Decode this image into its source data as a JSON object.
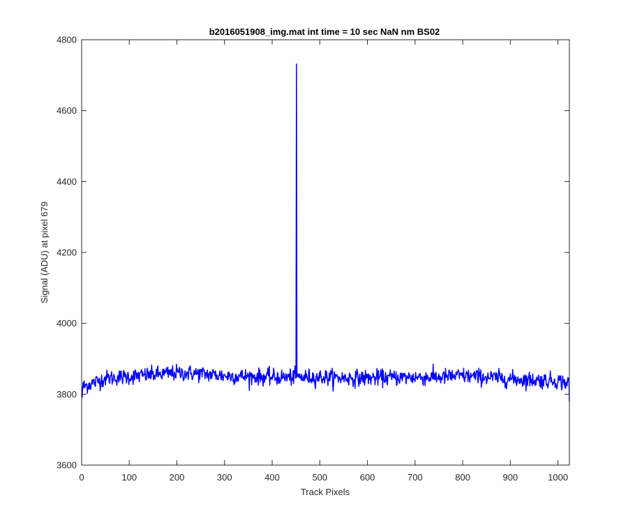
{
  "chart_data": {
    "type": "line",
    "title": "b2016051908_img.mat int time = 10 sec  NaN nm BS02",
    "xlabel": "Track Pixels",
    "ylabel": "Signal (ADU) at pixel 679",
    "xlim": [
      0,
      1024
    ],
    "ylim": [
      3600,
      4800
    ],
    "xticks": [
      0,
      100,
      200,
      300,
      400,
      500,
      600,
      700,
      800,
      900,
      1000
    ],
    "yticks": [
      3600,
      3800,
      4000,
      4200,
      4400,
      4600,
      4800
    ],
    "grid": false,
    "legend": "none",
    "series": [
      {
        "color": "#0000ff",
        "baseline_profile": {
          "x": [
            0,
            50,
            100,
            150,
            200,
            250,
            300,
            350,
            400,
            450,
            500,
            550,
            600,
            650,
            700,
            750,
            800,
            850,
            900,
            950,
            1000,
            1024
          ],
          "y": [
            3820,
            3845,
            3850,
            3855,
            3860,
            3858,
            3852,
            3850,
            3848,
            3848,
            3848,
            3846,
            3846,
            3847,
            3848,
            3848,
            3852,
            3848,
            3843,
            3840,
            3838,
            3830
          ]
        },
        "noise_amplitude": 15,
        "start_value": 3790,
        "end_value": 3778,
        "spike": {
          "x": 451,
          "y": 4732
        }
      }
    ]
  }
}
